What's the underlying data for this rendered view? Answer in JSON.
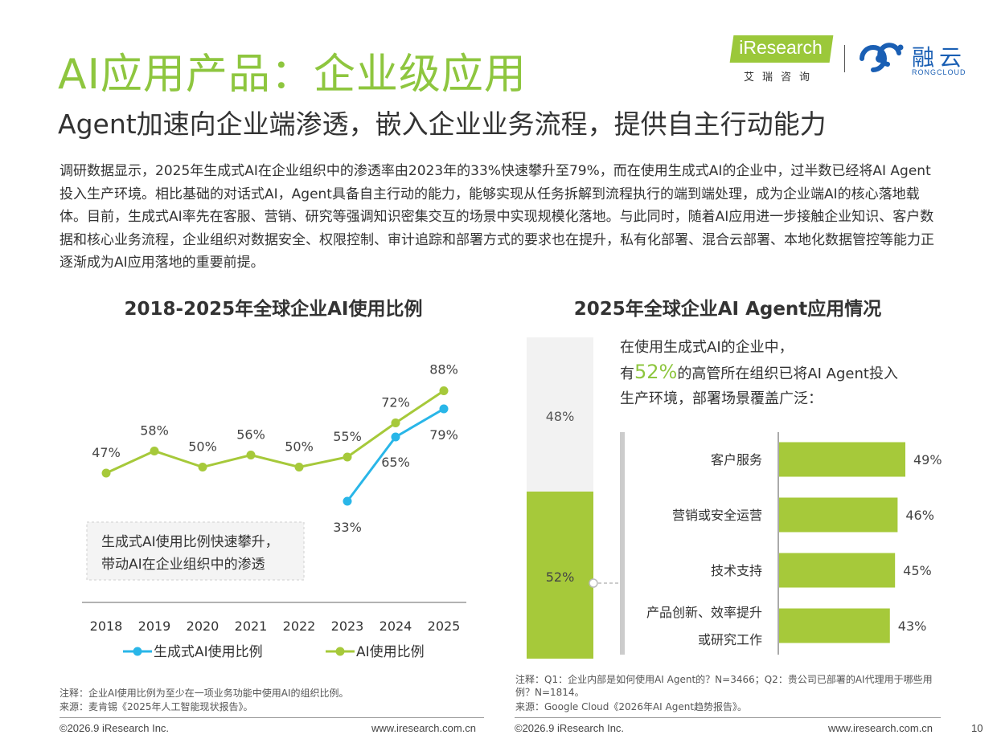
{
  "header": {
    "title": "AI应用产品：企业级应用",
    "subtitle": "Agent加速向企业端渗透，嵌入企业业务流程，提供自主行动能力",
    "body": "调研数据显示，2025年生成式AI在企业组织中的渗透率由2023年的33%快速攀升至79%，而在使用生成式AI的企业中，过半数已经将AI Agent投入生产环境。相比基础的对话式AI，Agent具备自主行动的能力，能够实现从任务拆解到流程执行的端到端处理，成为企业端AI的核心落地载体。目前，生成式AI率先在客服、营销、研究等强调知识密集交互的场景中实现规模化落地。与此同时，随着AI应用进一步接触企业知识、客户数据和核心业务流程，企业组织对数据安全、权限控制、审计追踪和部署方式的要求也在提升，私有化部署、混合云部署、本地化数据管控等能力正逐渐成为AI应用落地的重要前提。"
  },
  "logos": {
    "iresearch": "iResearch",
    "iresearch_cn": "艾瑞咨询",
    "rongcloud_cn": "融云",
    "rongcloud_en": "RONGCLOUD",
    "iresearch_color": "#9bc83a",
    "rongcloud_color": "#1a5fb4"
  },
  "colors": {
    "green": "#a6c93a",
    "blue": "#29b6e8",
    "gray_bar": "#f2f2f2",
    "title_green": "#8ec63f"
  },
  "left_chart": {
    "note": "注释：企业AI使用比例为至少在一项业务功能中使用AI的组织比例。",
    "source": "来源：麦肯锡《2025年人工智能现状报告》。",
    "annotation": [
      "生成式AI使用比例快速攀升，",
      "带动AI在企业组织中的渗透"
    ]
  },
  "right_chart": {
    "intro_line1": "在使用生成式AI的企业中，",
    "intro_prefix": "有",
    "intro_highlight": "52%",
    "intro_suffix": "的高管所在组织已将AI Agent投入",
    "intro_line3": "生产环境，部署场景覆盖广泛：",
    "note": "注释：Q1：企业内部是如何使用AI Agent的？N=3466；Q2：贵公司已部署的AI代理用于哪些用例？N=1814。",
    "source": "来源：Google Cloud《2026年AI Agent趋势报告》。"
  },
  "chart_data": [
    {
      "type": "line",
      "title": "2018-2025年全球企业AI使用比例",
      "x": [
        "2018",
        "2019",
        "2020",
        "2021",
        "2022",
        "2023",
        "2024",
        "2025"
      ],
      "series": [
        {
          "name": "生成式AI使用比例",
          "color": "#29b6e8",
          "values": [
            null,
            null,
            null,
            null,
            null,
            33,
            65,
            79
          ],
          "labels": [
            "",
            "",
            "",
            "",
            "",
            "33%",
            "65%",
            "79%"
          ]
        },
        {
          "name": "AI使用比例",
          "color": "#a6c93a",
          "values": [
            47,
            58,
            50,
            56,
            50,
            55,
            72,
            88
          ],
          "labels": [
            "47%",
            "58%",
            "50%",
            "56%",
            "50%",
            "55%",
            "72%",
            "88%"
          ]
        }
      ],
      "legend": "bottom",
      "grid": false
    },
    {
      "type": "bar",
      "orientation": "stacked-vertical",
      "segments": [
        {
          "value": 48,
          "label": "48%",
          "color": "#f2f2f2"
        },
        {
          "value": 52,
          "label": "52%",
          "color": "#a6c93a"
        }
      ]
    },
    {
      "type": "bar",
      "title": "2025年全球企业AI Agent应用情况",
      "orientation": "horizontal",
      "categories": [
        "客户服务",
        "营销或安全运营",
        "技术支持",
        "产品创新、效率提升或研究工作"
      ],
      "category_lines": [
        [
          "客户服务"
        ],
        [
          "营销或安全运营"
        ],
        [
          "技术支持"
        ],
        [
          "产品创新、效率提升",
          "或研究工作"
        ]
      ],
      "values": [
        49,
        46,
        45,
        43
      ],
      "labels": [
        "49%",
        "46%",
        "45%",
        "43%"
      ],
      "color": "#a6c93a"
    }
  ],
  "footer": {
    "copyright": "©2026.9 iResearch Inc.",
    "website": "www.iresearch.com.cn",
    "page": "10"
  }
}
